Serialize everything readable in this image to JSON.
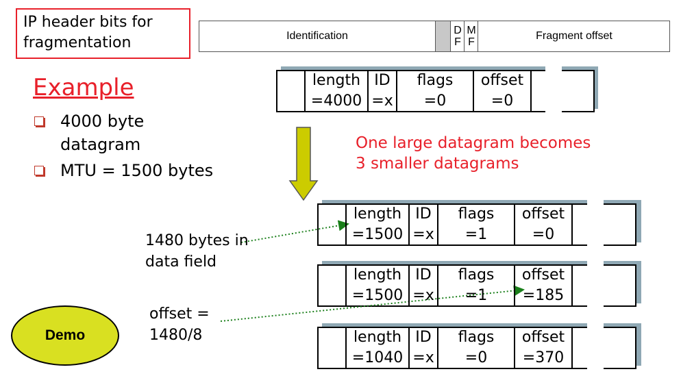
{
  "ip_header": {
    "label": "IP header bits for fragmentation",
    "label_line1": "IP header bits for",
    "label_line2": "fragmentation",
    "fields": {
      "identification": "Identification",
      "df_1": "D",
      "df_2": "F",
      "mf_1": "M",
      "mf_2": "F",
      "fragment_offset": "Fragment offset"
    }
  },
  "example": {
    "title": "Example",
    "bullets": [
      "4000 byte datagram",
      "MTU = 1500 bytes"
    ],
    "bullet1_line1": "4000 byte",
    "bullet1_line2": "datagram"
  },
  "caption": {
    "line1": "One large datagram becomes",
    "line2": "3 smaller datagrams"
  },
  "headers": {
    "length": "length",
    "id": "ID",
    "flags": "flags",
    "offset": "offset"
  },
  "original": {
    "length": "=4000",
    "id": "=x",
    "flags": "=0",
    "offset": "=0"
  },
  "fragments": [
    {
      "length": "=1500",
      "id": "=x",
      "flags": "=1",
      "offset": "=0"
    },
    {
      "length": "=1500",
      "id": "=x",
      "flags": "=1",
      "offset": "=185"
    },
    {
      "length": "=1040",
      "id": "=x",
      "flags": "=0",
      "offset": "=370"
    }
  ],
  "annotations": {
    "data_field_line1": "1480 bytes in",
    "data_field_line2": "data field",
    "offset_line1": "offset =",
    "offset_line2": "1480/8"
  },
  "demo_button": "Demo",
  "colors": {
    "red": "#e8202a",
    "demo": "#d9e021",
    "arrow_fill": "#cccc00",
    "shadow": "#8fa8b4",
    "dotted": "#1a7f1a"
  }
}
